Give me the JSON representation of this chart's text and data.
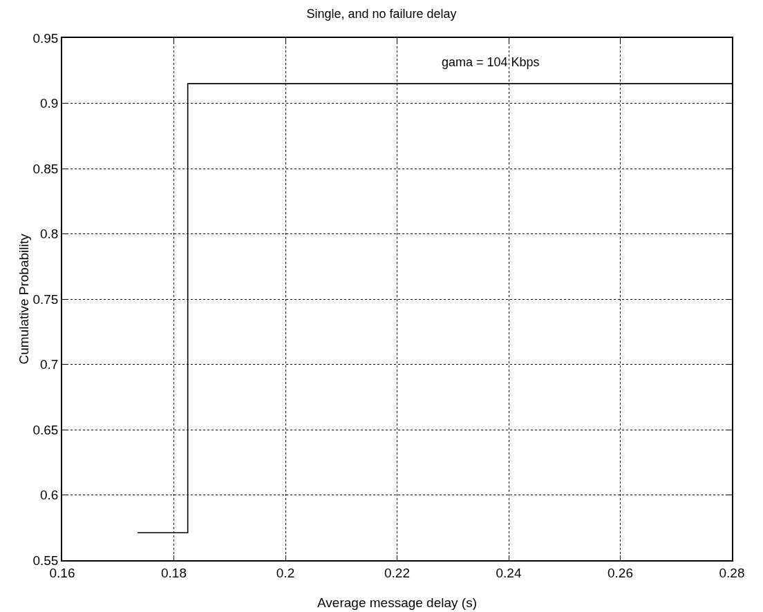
{
  "chart_data": {
    "type": "step",
    "title": "Single, and no failure delay",
    "xlabel": "Average message delay (s)",
    "ylabel": "Cumulative Probability",
    "x": [
      0.1735,
      0.1825,
      0.28
    ],
    "series": [
      {
        "color": "#000000",
        "values": [
          0.571,
          0.915,
          0.915
        ]
      }
    ],
    "annotations": [
      "gama = 104 Kbps"
    ],
    "xlim": [
      0.16,
      0.28
    ],
    "xticks": [
      0.16,
      0.18,
      0.2,
      0.22,
      0.24,
      0.26,
      0.28
    ],
    "ylim": [
      0.55,
      0.95
    ],
    "yticks": [
      0.55,
      0.6,
      0.65,
      0.7,
      0.75,
      0.8,
      0.85,
      0.9,
      0.95
    ],
    "grid": true,
    "line_style": "solid",
    "marker": "none"
  }
}
